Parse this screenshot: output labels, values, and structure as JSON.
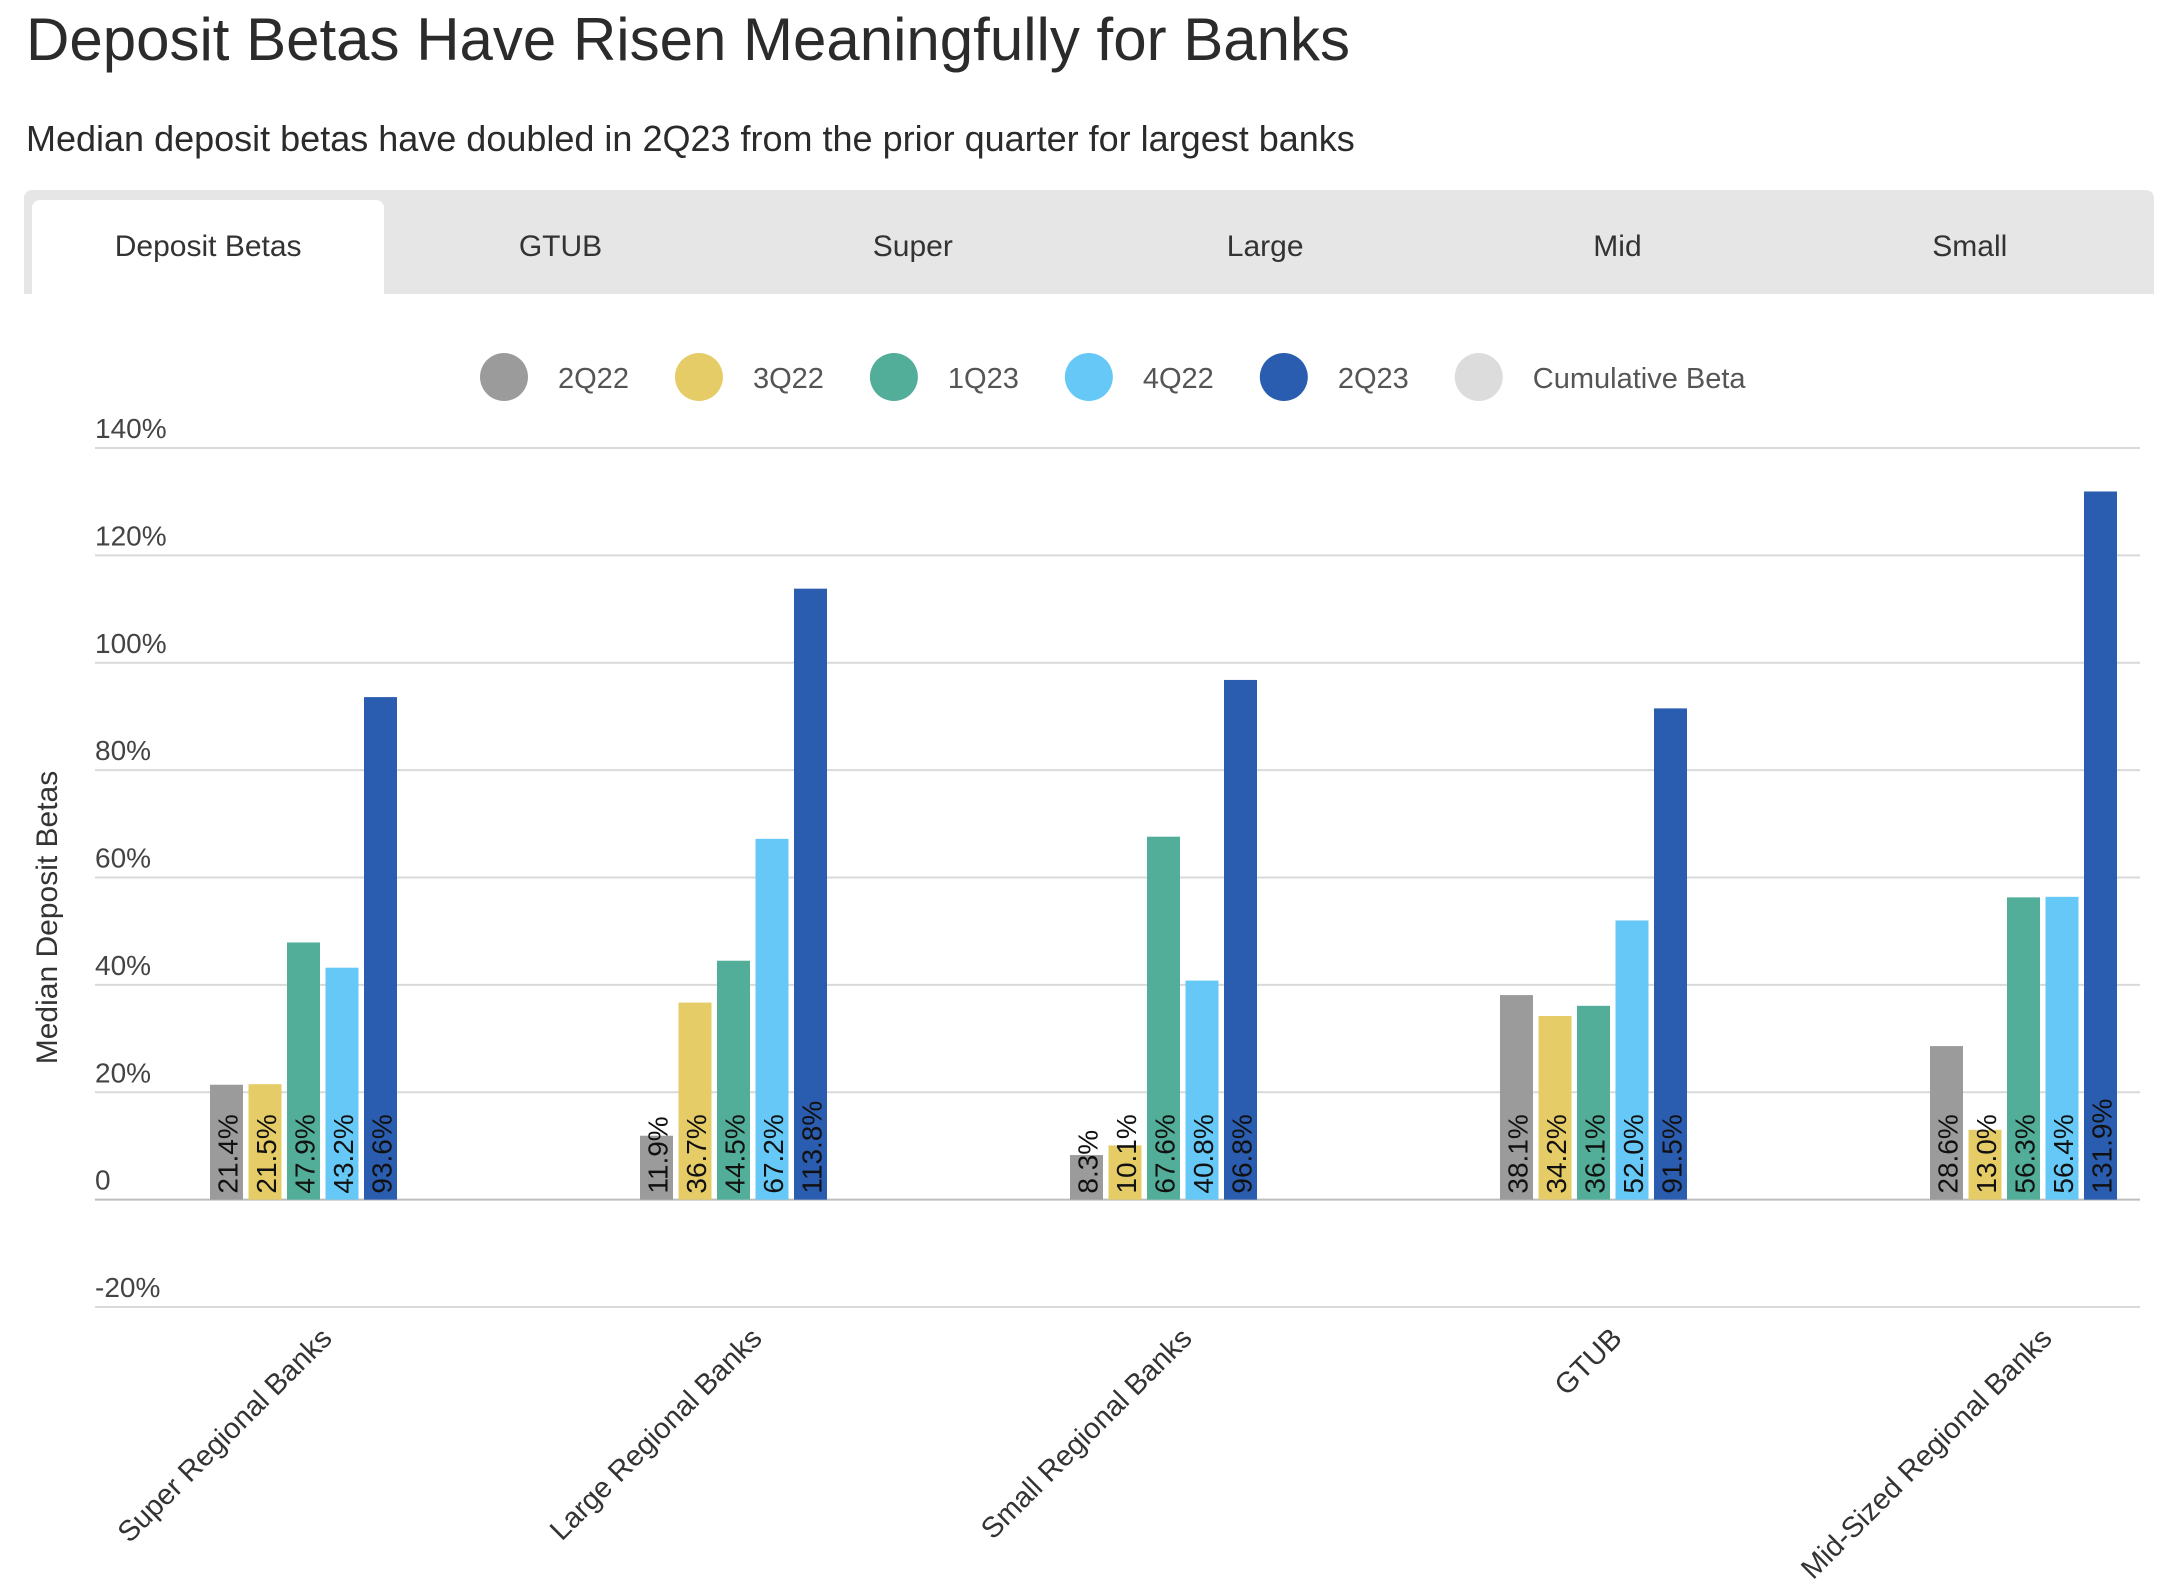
{
  "header": {
    "title": "Deposit Betas Have Risen Meaningfully for Banks",
    "subtitle": "Median deposit betas have doubled in 2Q23 from the prior quarter for largest banks"
  },
  "tabs": [
    {
      "label": "Deposit Betas",
      "active": true
    },
    {
      "label": "GTUB",
      "active": false
    },
    {
      "label": "Super",
      "active": false
    },
    {
      "label": "Large",
      "active": false
    },
    {
      "label": "Mid",
      "active": false
    },
    {
      "label": "Small",
      "active": false
    }
  ],
  "chart_data": {
    "type": "bar",
    "ylabel": "Median Deposit Betas",
    "ylim": [
      -20,
      140
    ],
    "yticks": [
      -20,
      0,
      20,
      40,
      60,
      80,
      100,
      120,
      140
    ],
    "ytick_labels": [
      "-20%",
      "0",
      "20%",
      "40%",
      "60%",
      "80%",
      "100%",
      "120%",
      "140%"
    ],
    "grid": true,
    "legend_position": "top-center",
    "categories": [
      "Super Regional Banks",
      "Large Regional Banks",
      "Small Regional Banks",
      "GTUB",
      "Mid-Sized Regional Banks"
    ],
    "series": [
      {
        "name": "2Q22",
        "color": "#9b9b9b",
        "values": [
          21.4,
          11.9,
          8.3,
          38.1,
          28.6
        ],
        "labels": [
          "21.4%",
          "11.9%",
          "8.3%",
          "38.1%",
          "28.6%"
        ]
      },
      {
        "name": "3Q22",
        "color": "#e6cc66",
        "values": [
          21.5,
          36.7,
          10.1,
          34.2,
          13.0
        ],
        "labels": [
          "21.5%",
          "36.7%",
          "10.1%",
          "34.2%",
          "13.0%"
        ]
      },
      {
        "name": "1Q23",
        "color": "#52ae98",
        "values": [
          47.9,
          44.5,
          67.6,
          36.1,
          56.3
        ],
        "labels": [
          "47.9%",
          "44.5%",
          "67.6%",
          "36.1%",
          "56.3%"
        ]
      },
      {
        "name": "4Q22",
        "color": "#66c8f6",
        "values": [
          43.2,
          67.2,
          40.8,
          52.0,
          56.4
        ],
        "labels": [
          "43.2%",
          "67.2%",
          "40.8%",
          "52.0%",
          "56.4%"
        ]
      },
      {
        "name": "2Q23",
        "color": "#2a5db0",
        "values": [
          93.6,
          113.8,
          96.8,
          91.5,
          131.9
        ],
        "labels": [
          "93.6%",
          "113.8%",
          "96.8%",
          "91.5%",
          "131.9%"
        ]
      }
    ],
    "extra_legend": [
      {
        "name": "Cumulative Beta",
        "color": "#dcdcdc"
      }
    ]
  }
}
